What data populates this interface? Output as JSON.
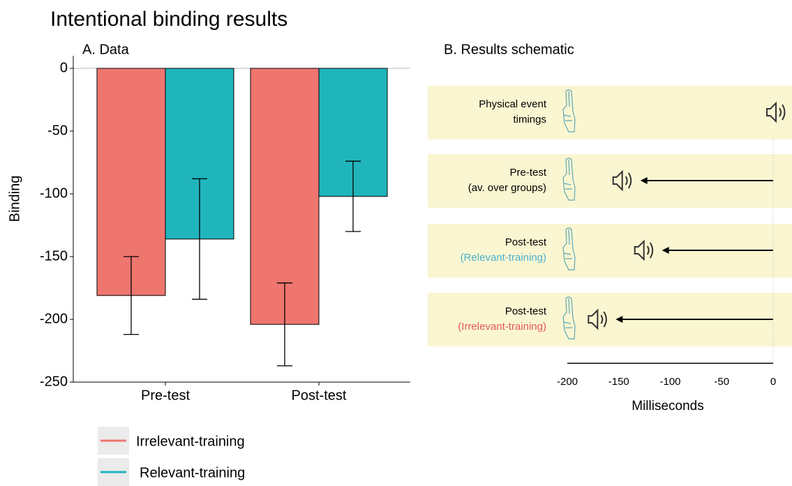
{
  "title": "Intentional binding results",
  "chart_data": [
    {
      "type": "bar",
      "title": "A. Data",
      "ylabel": "Binding",
      "categories": [
        "Pre-test",
        "Post-test"
      ],
      "series": [
        {
          "name": "Irrelevant-training",
          "color": "#ee766f",
          "values": [
            -181,
            -204
          ],
          "errors": [
            31,
            33
          ]
        },
        {
          "name": "Relevant-training",
          "color": "#1fb5bb",
          "values": [
            -136,
            -102
          ],
          "errors": [
            48,
            28
          ]
        }
      ],
      "ylim": [
        -250,
        0
      ],
      "yticks": [
        0,
        -50,
        -100,
        -150,
        -200,
        -250
      ],
      "legend": "bottom"
    },
    {
      "type": "timeline",
      "title": "B. Results schematic",
      "xlabel": "Milliseconds",
      "xlim": [
        -200,
        0
      ],
      "xticks": [
        -200,
        -150,
        -100,
        -50,
        0
      ],
      "rows": [
        {
          "lines": [
            "Physical event",
            "timings"
          ],
          "value": 0
        },
        {
          "lines": [
            "Pre-test",
            "(av. over groups)"
          ],
          "value": -129
        },
        {
          "lines": [
            "Post-test",
            "(Relevant-training)"
          ],
          "value": -108,
          "note_color": "#4bb0d0"
        },
        {
          "lines": [
            "Post-test",
            "(Irrelevant-training)"
          ],
          "value": -153,
          "note_color": "#e0585a"
        }
      ],
      "band_color": "#faf6d1"
    }
  ]
}
